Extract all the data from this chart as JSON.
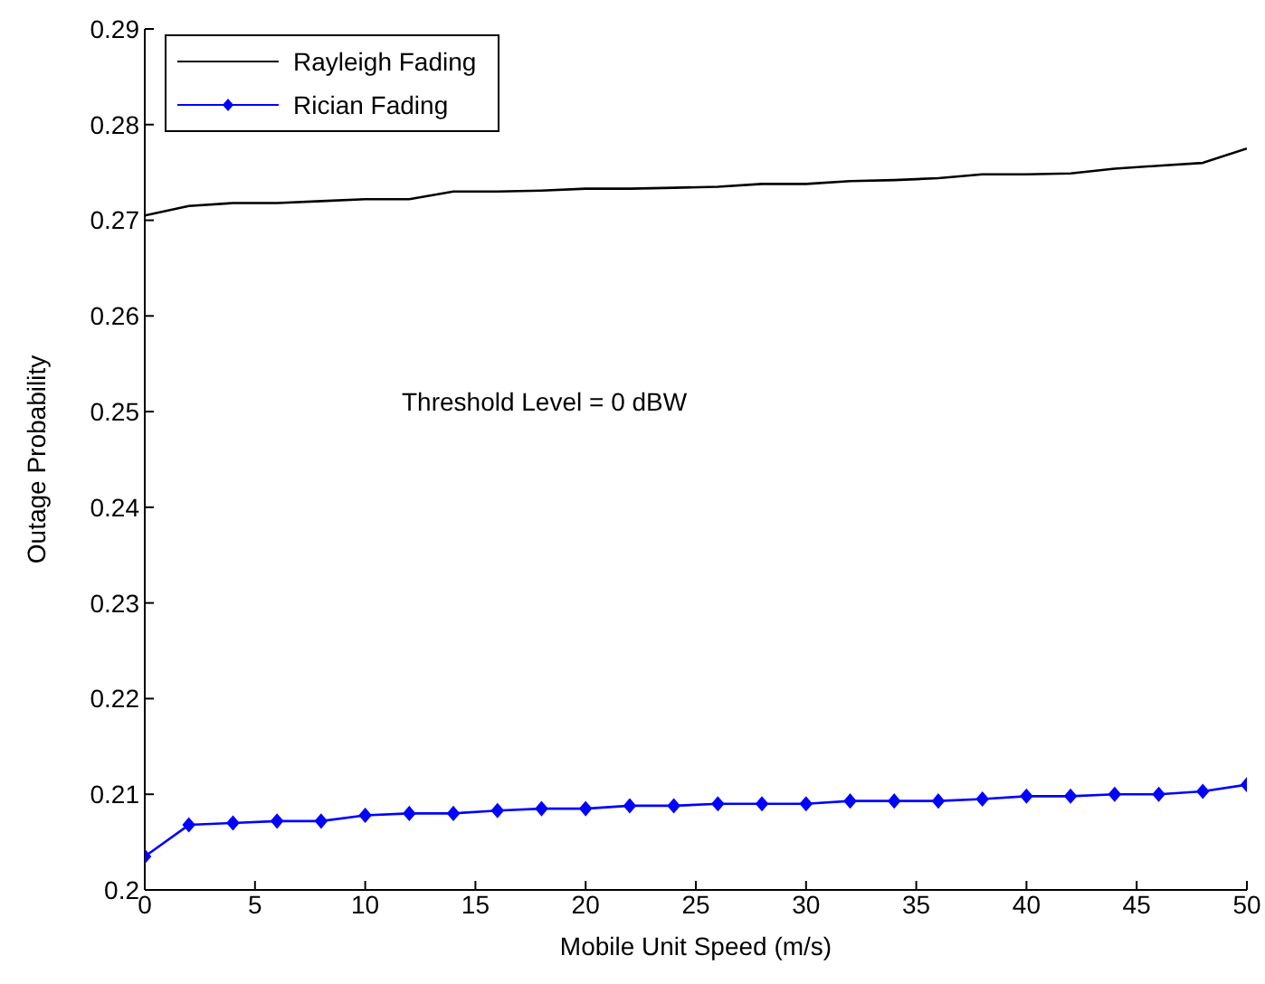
{
  "chart_data": {
    "type": "line",
    "xlabel": "Mobile Unit Speed (m/s)",
    "ylabel": "Outage Probability",
    "x": [
      0,
      2,
      4,
      6,
      8,
      10,
      12,
      14,
      16,
      18,
      20,
      22,
      24,
      26,
      28,
      30,
      32,
      34,
      36,
      38,
      40,
      42,
      44,
      46,
      48,
      50
    ],
    "series": [
      {
        "name": "Rayleigh Fading",
        "color": "#000000",
        "marker": "none",
        "values": [
          0.2705,
          0.2715,
          0.2718,
          0.2718,
          0.272,
          0.2722,
          0.2722,
          0.273,
          0.273,
          0.2731,
          0.2733,
          0.2733,
          0.2734,
          0.2735,
          0.2738,
          0.2738,
          0.2741,
          0.2742,
          0.2744,
          0.2748,
          0.2748,
          0.2749,
          0.2754,
          0.2757,
          0.276,
          0.2775
        ]
      },
      {
        "name": "Rician Fading",
        "color": "#0000ff",
        "marker": "diamond",
        "values": [
          0.2035,
          0.2068,
          0.207,
          0.2072,
          0.2072,
          0.2078,
          0.208,
          0.208,
          0.2083,
          0.2085,
          0.2085,
          0.2088,
          0.2088,
          0.209,
          0.209,
          0.209,
          0.2093,
          0.2093,
          0.2093,
          0.2095,
          0.2098,
          0.2098,
          0.21,
          0.21,
          0.2103,
          0.211
        ]
      }
    ],
    "xlim": [
      0,
      50
    ],
    "xticks": [
      0,
      5,
      10,
      15,
      20,
      25,
      30,
      35,
      40,
      45,
      50
    ],
    "ylim": [
      0.2,
      0.29
    ],
    "yticks": [
      0.2,
      0.21,
      0.22,
      0.23,
      0.24,
      0.25,
      0.26,
      0.27,
      0.28,
      0.29
    ],
    "annotations": [
      "Threshold Level = 0 dBW"
    ],
    "legend": "top left",
    "grid": false,
    "line_style": "solid"
  }
}
